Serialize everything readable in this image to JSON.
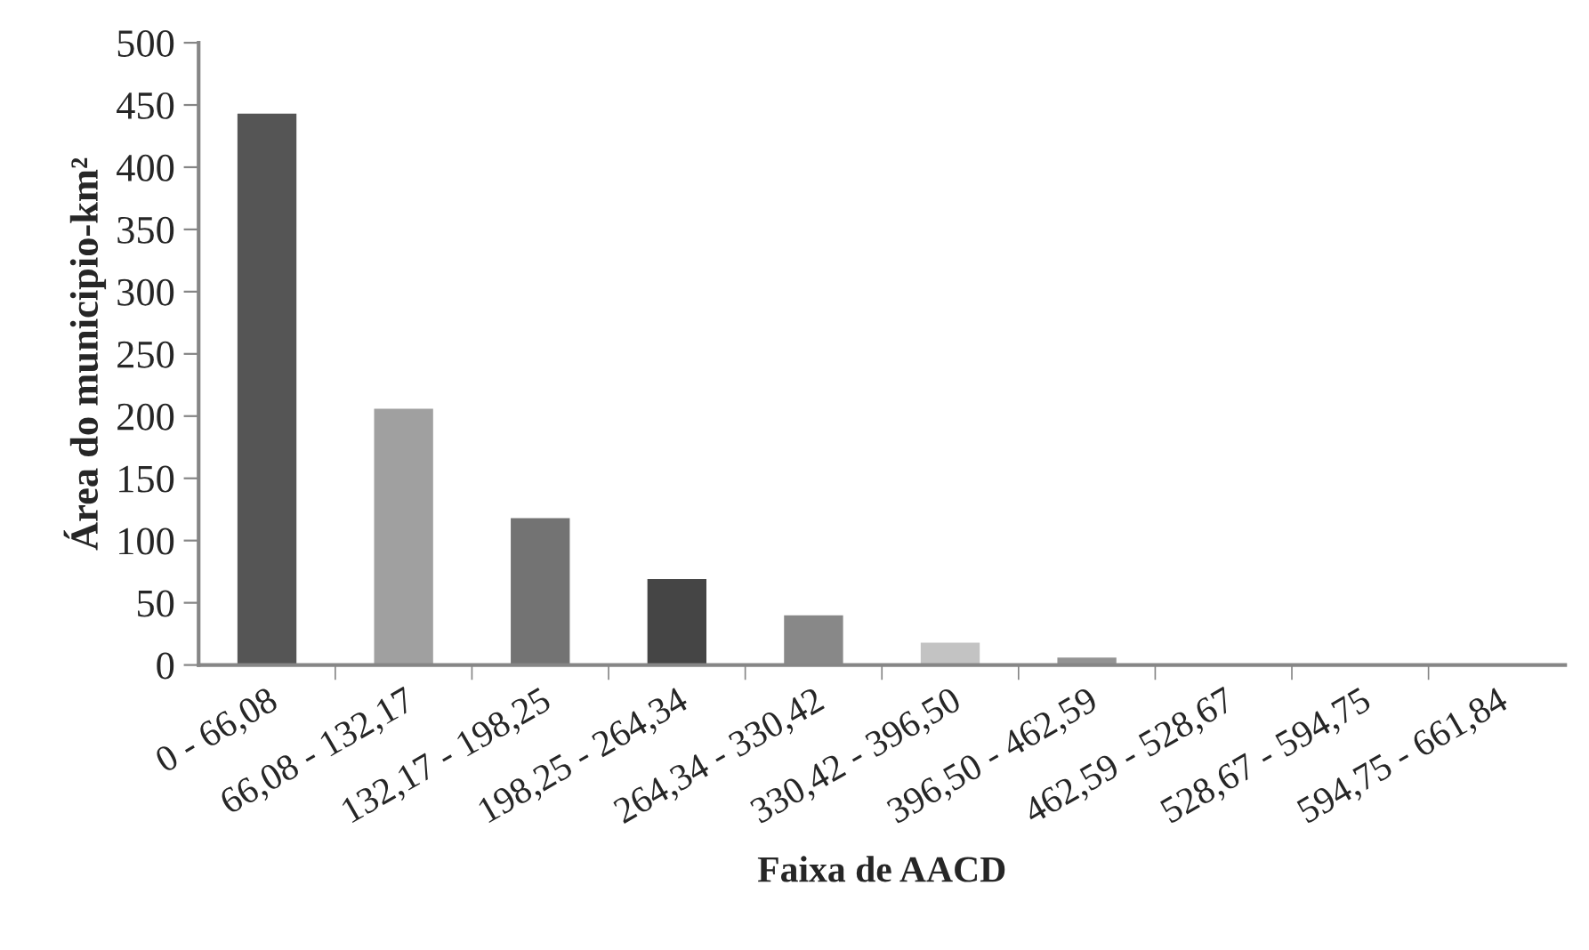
{
  "chart_data": {
    "type": "bar",
    "xlabel": "Faixa de AACD",
    "ylabel": "Área do municipio-km²",
    "categories": [
      "0 - 66,08",
      "66,08 - 132,17",
      "132,17 - 198,25",
      "198,25 - 264,34",
      "264,34 - 330,42",
      "330,42 - 396,50",
      "396,50 - 462,59",
      "462,59 - 528,67",
      "528,67 - 594,75",
      "594,75 - 661,84"
    ],
    "values": [
      444,
      207,
      119,
      70,
      41,
      19,
      7,
      1,
      1,
      1
    ],
    "colors": [
      "#555555",
      "#a0a0a0",
      "#737373",
      "#454545",
      "#888888",
      "#c3c3c3",
      "#939393",
      "#cccccc",
      "#b0b0b0",
      "#999999"
    ],
    "ylim": [
      0,
      500
    ],
    "yticks": [
      0,
      50,
      100,
      150,
      200,
      250,
      300,
      350,
      400,
      450,
      500
    ],
    "grid": false
  }
}
